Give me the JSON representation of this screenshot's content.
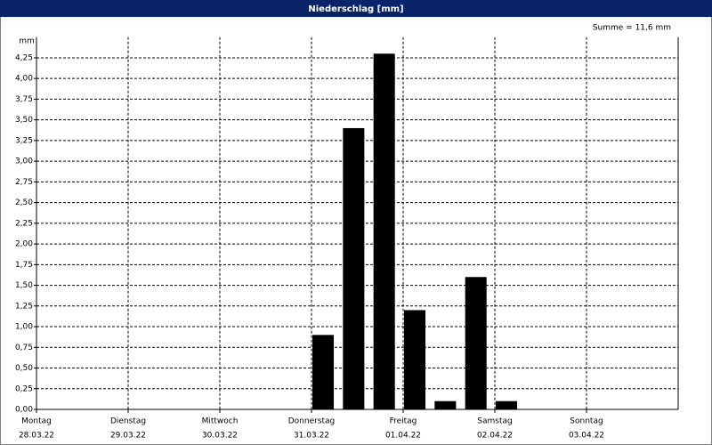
{
  "chart_data": {
    "type": "bar",
    "title": "Niederschlag [mm]",
    "y_unit": "mm",
    "annotation": "Summe = 11,6 mm",
    "categories": [
      null,
      null,
      null,
      null,
      null,
      null,
      null,
      null,
      null,
      null,
      null,
      null,
      null,
      null,
      null,
      null,
      null,
      null,
      null,
      null,
      null
    ],
    "values": [
      0,
      0,
      0,
      0,
      0,
      0,
      0,
      0,
      0,
      0.9,
      3.4,
      4.3,
      1.2,
      0.1,
      1.6,
      0.1,
      0,
      0,
      0,
      0,
      0
    ],
    "color": "#000000",
    "day_labels": [
      {
        "day": "Montag",
        "date": "28.03.22"
      },
      {
        "day": "Dienstag",
        "date": "29.03.22"
      },
      {
        "day": "Mittwoch",
        "date": "30.03.22"
      },
      {
        "day": "Donnerstag",
        "date": "31.03.22"
      },
      {
        "day": "Freitag",
        "date": "01.04.22"
      },
      {
        "day": "Samstag",
        "date": "02.04.22"
      },
      {
        "day": "Sonntag",
        "date": "03.04.22"
      }
    ],
    "ylim": [
      0,
      4.5
    ],
    "yticks": [
      {
        "value": 0,
        "label": "0,00"
      },
      {
        "value": 0.25,
        "label": "0,25"
      },
      {
        "value": 0.5,
        "label": "0,50"
      },
      {
        "value": 0.75,
        "label": "0,75"
      },
      {
        "value": 1,
        "label": "1,00"
      },
      {
        "value": 1.25,
        "label": "1,25"
      },
      {
        "value": 1.5,
        "label": "1,50"
      },
      {
        "value": 1.75,
        "label": "1,75"
      },
      {
        "value": 2,
        "label": "2,00"
      },
      {
        "value": 2.25,
        "label": "2,25"
      },
      {
        "value": 2.5,
        "label": "2,50"
      },
      {
        "value": 2.75,
        "label": "2,75"
      },
      {
        "value": 3,
        "label": "3,00"
      },
      {
        "value": 3.25,
        "label": "3,25"
      },
      {
        "value": 3.5,
        "label": "3,50"
      },
      {
        "value": 3.75,
        "label": "3,75"
      },
      {
        "value": 4,
        "label": "4,00"
      },
      {
        "value": 4.25,
        "label": "4,25"
      }
    ],
    "grid": true
  }
}
